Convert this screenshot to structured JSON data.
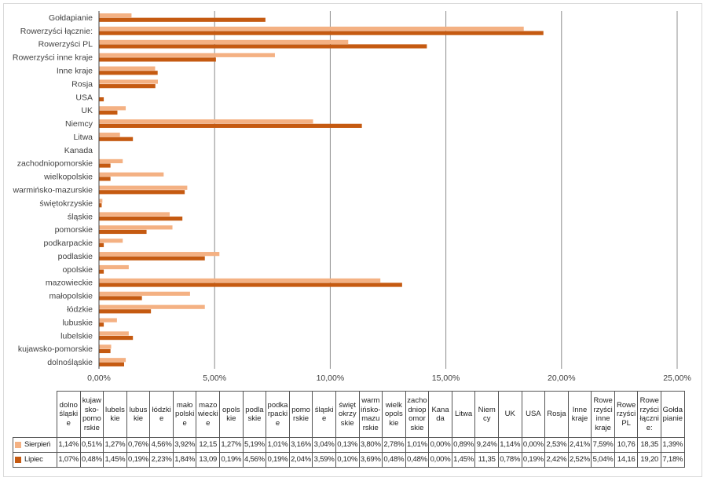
{
  "colors": {
    "sierpien": "#f4b183",
    "lipiec": "#c55a11",
    "grid": "#8c8c8c"
  },
  "chart_data": {
    "type": "bar",
    "orientation": "horizontal",
    "xlim": [
      0,
      25
    ],
    "ticks": [
      "0,00%",
      "5,00%",
      "10,00%",
      "15,00%",
      "20,00%",
      "25,00%"
    ],
    "tick_values": [
      0,
      5,
      10,
      15,
      20,
      25
    ],
    "grid": true,
    "legend": "table-left",
    "categories": [
      "dolnośląskie",
      "kujawsko-pomorskie",
      "lubelskie",
      "lubuskie",
      "łódzkie",
      "małopolskie",
      "mazowieckie",
      "opolskie",
      "podlaskie",
      "podkarpackie",
      "pomorskie",
      "śląskie",
      "świętokrzyskie",
      "warmińsko-mazurskie",
      "wielkopolskie",
      "zachodniopomorskie",
      "Kanada",
      "Litwa",
      "Niemcy",
      "UK",
      "USA",
      "Rosja",
      "Inne kraje",
      "Rowerzyści inne kraje",
      "Rowerzyści PL",
      "Rowerzyści łącznie:",
      "Gołdapianie"
    ],
    "table_headers": [
      "dolno śląski e",
      "kujaw sko- pomo rskie",
      "lubels kie",
      "lubus kie",
      "łódzki e",
      "mało polski e",
      "mazo wiecki e",
      "opols kie",
      "podla skie",
      "podka rpacki e",
      "pomo rskie",
      "śląski e",
      "święt okrzy skie",
      "warm ińsko- mazu rskie",
      "wielk opols kie",
      "zacho dniop omor skie",
      "Kana da",
      "Litwa",
      "Niem cy",
      "UK",
      "USA",
      "Rosja",
      "Inne kraje",
      "Rowe rzyści inne kraje",
      "Rowe rzyści PL",
      "Rowe rzyści łączni e:",
      "Gołda pianie"
    ],
    "series": [
      {
        "name": "Sierpień",
        "values": [
          1.14,
          0.51,
          1.27,
          0.76,
          4.56,
          3.92,
          12.15,
          1.27,
          5.19,
          1.01,
          3.16,
          3.04,
          0.13,
          3.8,
          2.78,
          1.01,
          0.0,
          0.89,
          9.24,
          1.14,
          0.0,
          2.53,
          2.41,
          7.59,
          10.76,
          18.35,
          1.39
        ],
        "labels": [
          "1,14%",
          "0,51%",
          "1,27%",
          "0,76%",
          "4,56%",
          "3,92%",
          "12,15",
          "1,27%",
          "5,19%",
          "1,01%",
          "3,16%",
          "3,04%",
          "0,13%",
          "3,80%",
          "2,78%",
          "1,01%",
          "0,00%",
          "0,89%",
          "9,24%",
          "1,14%",
          "0,00%",
          "2,53%",
          "2,41%",
          "7,59%",
          "10,76",
          "18,35",
          "1,39%"
        ]
      },
      {
        "name": "Lipiec",
        "values": [
          1.07,
          0.48,
          1.45,
          0.19,
          2.23,
          1.84,
          13.09,
          0.19,
          4.56,
          0.19,
          2.04,
          3.59,
          0.1,
          3.69,
          0.48,
          0.48,
          0.0,
          1.45,
          11.35,
          0.78,
          0.19,
          2.42,
          2.52,
          5.04,
          14.16,
          19.2,
          7.18
        ],
        "labels": [
          "1,07%",
          "0,48%",
          "1,45%",
          "0,19%",
          "2,23%",
          "1,84%",
          "13,09",
          "0,19%",
          "4,56%",
          "0,19%",
          "2,04%",
          "3,59%",
          "0,10%",
          "3,69%",
          "0,48%",
          "0,48%",
          "0,00%",
          "1,45%",
          "11,35",
          "0,78%",
          "0,19%",
          "2,42%",
          "2,52%",
          "5,04%",
          "14,16",
          "19,20",
          "7,18%"
        ]
      }
    ]
  }
}
